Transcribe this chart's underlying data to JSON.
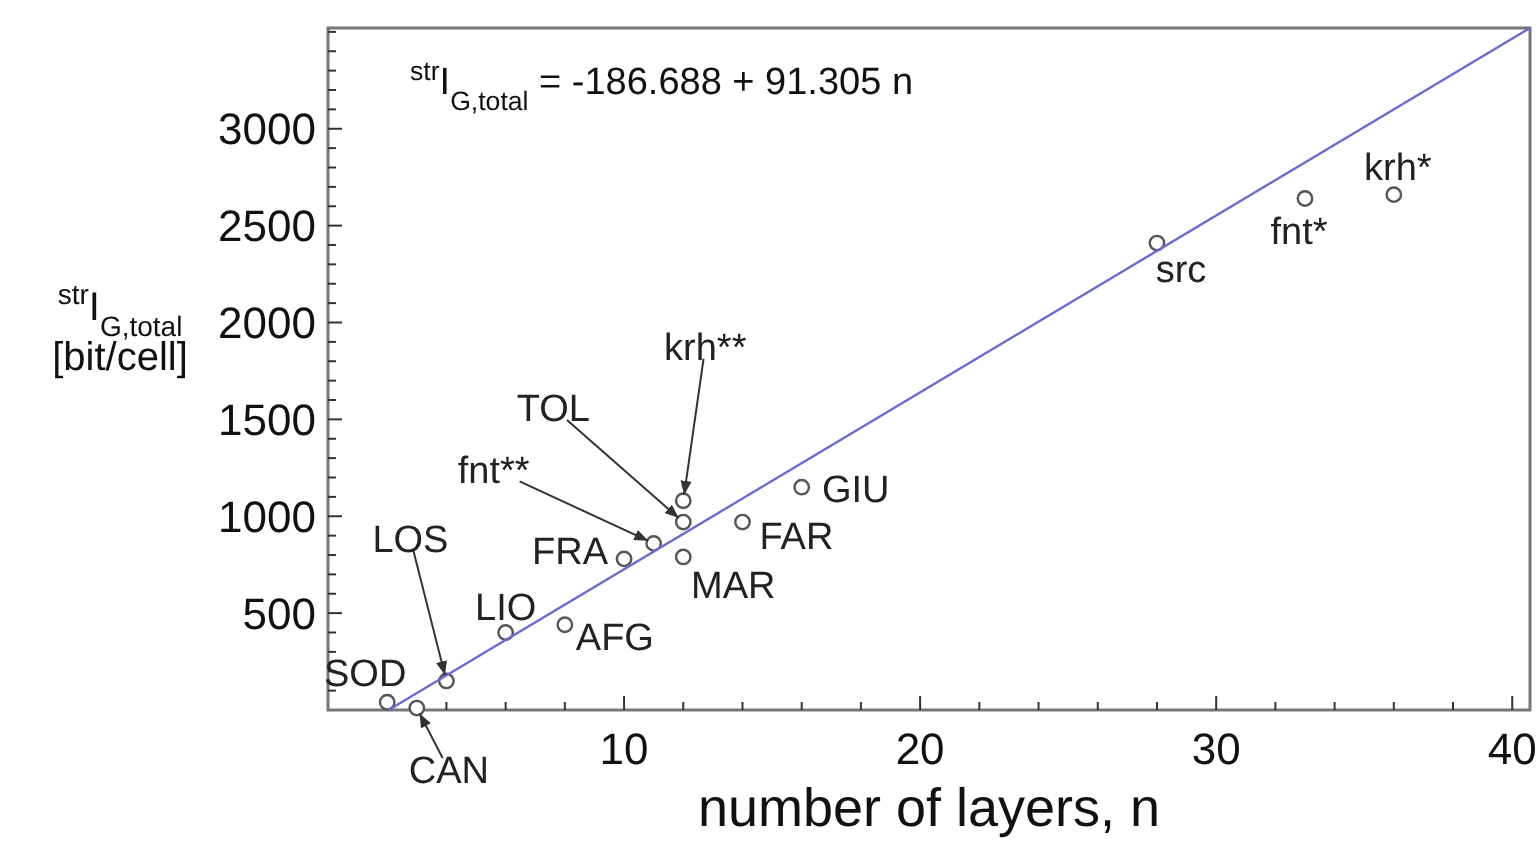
{
  "chart_data": {
    "type": "scatter",
    "title": "$^{str}$I$_{G,total}$ = -186.688 + 91.305 n",
    "xlabel": "number of layers, n",
    "ylabel": "$^{str}$I$_{G,total}$ [bit/cell]",
    "xlim": [
      0,
      40.6
    ],
    "ylim": [
      0,
      3520
    ],
    "xticks": [
      {
        "value": 2,
        "label": null
      },
      {
        "value": 4,
        "label": null
      },
      {
        "value": 6,
        "label": null
      },
      {
        "value": 8,
        "label": null
      },
      10,
      {
        "value": 12,
        "label": null
      },
      {
        "value": 14,
        "label": null
      },
      {
        "value": 16,
        "label": null
      },
      {
        "value": 18,
        "label": null
      },
      20,
      {
        "value": 22,
        "label": null
      },
      {
        "value": 24,
        "label": null
      },
      {
        "value": 26,
        "label": null
      },
      {
        "value": 28,
        "label": null
      },
      30,
      {
        "value": 32,
        "label": null
      },
      {
        "value": 34,
        "label": null
      },
      {
        "value": 36,
        "label": null
      },
      {
        "value": 38,
        "label": null
      },
      40
    ],
    "yticks": [
      {
        "value": 100,
        "label": null
      },
      {
        "value": 200,
        "label": null
      },
      {
        "value": 300,
        "label": null
      },
      {
        "value": 400,
        "label": null
      },
      500,
      {
        "value": 600,
        "label": null
      },
      {
        "value": 700,
        "label": null
      },
      {
        "value": 800,
        "label": null
      },
      {
        "value": 900,
        "label": null
      },
      1000,
      {
        "value": 1100,
        "label": null
      },
      {
        "value": 1200,
        "label": null
      },
      {
        "value": 1300,
        "label": null
      },
      {
        "value": 1400,
        "label": null
      },
      1500,
      {
        "value": 1600,
        "label": null
      },
      {
        "value": 1700,
        "label": null
      },
      {
        "value": 1800,
        "label": null
      },
      {
        "value": 1900,
        "label": null
      },
      2000,
      {
        "value": 2100,
        "label": null
      },
      {
        "value": 2200,
        "label": null
      },
      {
        "value": 2300,
        "label": null
      },
      {
        "value": 2400,
        "label": null
      },
      2500,
      {
        "value": 2600,
        "label": null
      },
      {
        "value": 2700,
        "label": null
      },
      {
        "value": 2800,
        "label": null
      },
      {
        "value": 2900,
        "label": null
      },
      3000,
      {
        "value": 3100,
        "label": null
      },
      {
        "value": 3200,
        "label": null
      },
      {
        "value": 3300,
        "label": null
      },
      {
        "value": 3400,
        "label": null
      },
      {
        "value": 3500,
        "label": null
      }
    ],
    "grid": false,
    "marker": "circle",
    "series": [
      {
        "color": "#555555",
        "x": [
          2,
          3,
          4,
          6,
          8,
          10,
          11,
          12,
          12,
          12,
          14,
          16,
          28,
          33,
          36
        ],
        "values": [
          40,
          10,
          150,
          400,
          440,
          780,
          860,
          970,
          1080,
          790,
          970,
          1150,
          2410,
          2640,
          2660
        ]
      },
      {
        "type": "line",
        "color": "#6a6ad6",
        "line_style": "solid",
        "marker": "none",
        "x": [
          2.045,
          40.6
        ],
        "values": [
          0,
          3520
        ]
      }
    ],
    "annotations": [
      {
        "text": "SOD",
        "x": 2,
        "y": 40
      },
      {
        "text": "CAN",
        "x": 3,
        "y": 10
      },
      {
        "text": "LOS",
        "x": 4,
        "y": 150
      },
      {
        "text": "LIO",
        "x": 6,
        "y": 400
      },
      {
        "text": "AFG",
        "x": 8,
        "y": 440
      },
      {
        "text": "FRA",
        "x": 10,
        "y": 780
      },
      {
        "text": "fnt**",
        "x": 11,
        "y": 860
      },
      {
        "text": "TOL",
        "x": 12,
        "y": 970
      },
      {
        "text": "krh**",
        "x": 12,
        "y": 1080
      },
      {
        "text": "MAR",
        "x": 12,
        "y": 790
      },
      {
        "text": "FAR",
        "x": 14,
        "y": 970
      },
      {
        "text": "GIU",
        "x": 16,
        "y": 1150
      },
      {
        "text": "src",
        "x": 28,
        "y": 2410
      },
      {
        "text": "fnt*",
        "x": 33,
        "y": 2640
      },
      {
        "text": "krh*",
        "x": 36,
        "y": 2660
      }
    ]
  }
}
